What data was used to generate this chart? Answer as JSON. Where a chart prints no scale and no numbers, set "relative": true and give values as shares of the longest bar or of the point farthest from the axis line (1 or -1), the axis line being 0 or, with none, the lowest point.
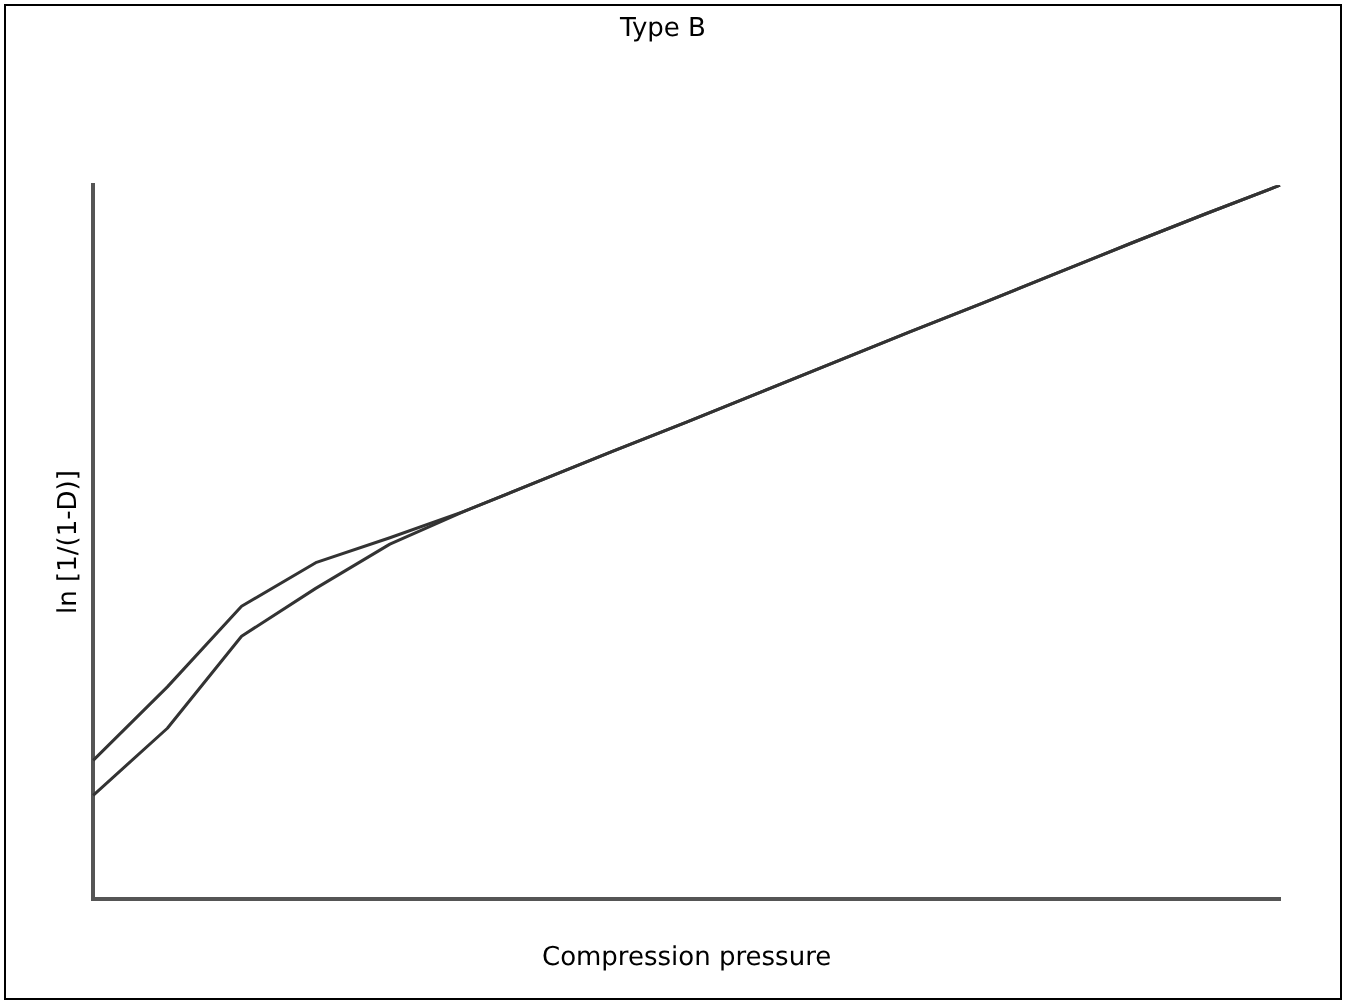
{
  "chart_data": {
    "type": "line",
    "title": "Type B",
    "xlabel": "Compression pressure",
    "ylabel": "ln [1/(1-D)]",
    "relative": true,
    "grid": false,
    "legend": false,
    "marker": "none",
    "line_style": "solid",
    "categories": [
      null,
      null,
      null,
      null,
      null,
      null,
      null,
      null,
      null,
      null,
      null,
      null,
      null,
      null,
      null,
      null,
      null
    ],
    "series": [
      {
        "color": "#333333",
        "values": [
          0.194,
          0.297,
          0.41,
          0.471,
          0.506,
          0.543,
          0.585,
          0.627,
          0.668,
          0.71,
          0.752,
          0.794,
          0.835,
          0.877,
          0.919,
          0.96,
          1
        ]
      },
      {
        "color": "#333333",
        "values": [
          0.145,
          0.239,
          0.368,
          0.435,
          0.497,
          0.543,
          0.585,
          0.627,
          0.668,
          0.71,
          0.752,
          0.794,
          0.835,
          0.877,
          0.919,
          0.96,
          1
        ]
      }
    ]
  }
}
